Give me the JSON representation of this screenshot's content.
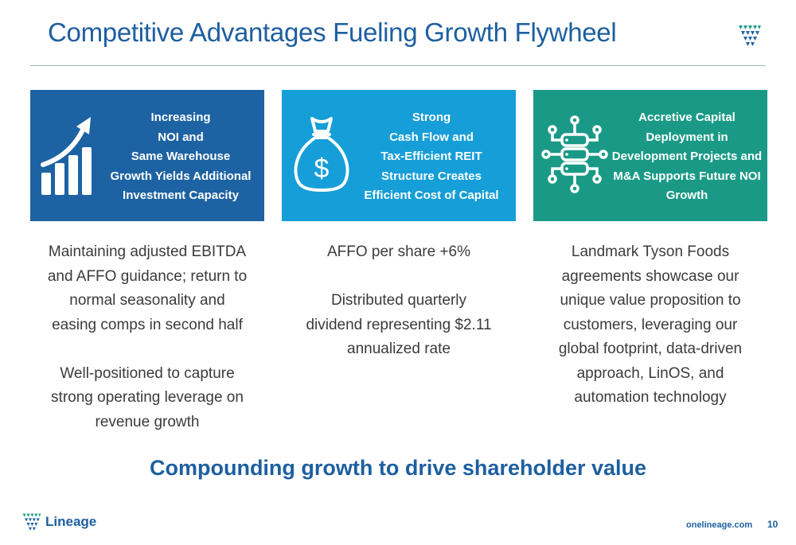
{
  "slide": {
    "title": "Competitive Advantages Fueling Growth Flywheel",
    "tagline": "Compounding growth to drive shareholder value",
    "page_number": "10"
  },
  "cards": [
    {
      "icon": "growth-chart-icon",
      "color": "#1d63a3",
      "lines": [
        "Increasing",
        "NOI and",
        "Same Warehouse",
        "Growth Yields Additional",
        "Investment Capacity"
      ]
    },
    {
      "icon": "money-bag-icon",
      "color": "#169ed8",
      "lines": [
        "Strong",
        "Cash Flow and",
        "Tax-Efficient REIT",
        "Structure Creates",
        "Efficient Cost of Capital"
      ]
    },
    {
      "icon": "database-network-icon",
      "color": "#1a9a86",
      "lines": [
        "Accretive Capital",
        "Deployment in",
        "Development Projects and",
        "M&A Supports Future NOI",
        "Growth"
      ]
    }
  ],
  "columns": [
    {
      "para1": [
        "Maintaining adjusted EBITDA",
        "and AFFO guidance; return to",
        "normal seasonality and",
        "easing comps in second half"
      ],
      "para2": [
        "Well-positioned to capture",
        "strong operating leverage on",
        "revenue growth"
      ]
    },
    {
      "para1": [
        "AFFO per share +6%"
      ],
      "para2": [
        "Distributed quarterly",
        "dividend representing $2.11",
        "annualized rate"
      ]
    },
    {
      "para1": [
        "Landmark Tyson Foods",
        "agreements showcase our",
        "unique value proposition to",
        "customers, leveraging our",
        "global footprint, data-driven",
        "approach, LinOS, and",
        "automation technology"
      ]
    }
  ],
  "footer": {
    "brand": "Lineage",
    "url": "onelineage.com"
  },
  "colors": {
    "title_blue": "#1d5fa0",
    "brand_green": "#1a9a86",
    "brand_blue": "#1d63a3",
    "light_blue": "#169ed8"
  }
}
